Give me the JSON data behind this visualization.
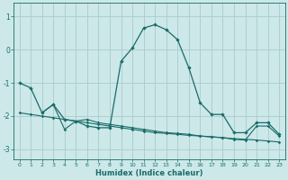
{
  "xlabel": "Humidex (Indice chaleur)",
  "bg_color": "#cce8e8",
  "grid_color": "#aacccc",
  "line_color": "#1a6b6b",
  "xlim": [
    -0.5,
    23.5
  ],
  "ylim": [
    -3.3,
    1.4
  ],
  "yticks": [
    -3,
    -2,
    -1,
    0,
    1
  ],
  "xticks": [
    0,
    1,
    2,
    3,
    4,
    5,
    6,
    7,
    8,
    9,
    10,
    11,
    12,
    13,
    14,
    15,
    16,
    17,
    18,
    19,
    20,
    21,
    22,
    23
  ],
  "series_main": {
    "x": [
      0,
      1,
      2,
      3,
      4,
      5,
      6,
      7,
      8,
      9,
      10,
      11,
      12,
      13,
      14,
      15,
      16,
      17,
      18,
      19,
      20,
      21,
      22,
      23
    ],
    "y": [
      -1.0,
      -1.15,
      -1.9,
      -1.65,
      -2.1,
      -2.15,
      -2.3,
      -2.35,
      -2.35,
      -0.35,
      0.05,
      0.65,
      0.75,
      0.6,
      0.3,
      -0.55,
      -1.6,
      -1.95,
      -1.95,
      -2.5,
      -2.5,
      -2.2,
      -2.2,
      -2.55
    ]
  },
  "series_lower1": {
    "x": [
      2,
      3,
      4,
      5,
      6,
      7,
      8,
      9,
      10,
      11,
      12,
      13,
      14,
      15,
      16,
      17,
      18,
      19,
      20,
      21,
      22,
      23
    ],
    "y": [
      -1.9,
      -1.65,
      -2.4,
      -2.15,
      -2.1,
      -2.2,
      -2.25,
      -2.3,
      -2.35,
      -2.4,
      -2.45,
      -2.5,
      -2.52,
      -2.55,
      -2.6,
      -2.62,
      -2.65,
      -2.7,
      -2.72,
      -2.3,
      -2.3,
      -2.6
    ]
  },
  "series_lower2": {
    "x": [
      0,
      1,
      2,
      3,
      4,
      5,
      6,
      7,
      8,
      9,
      10,
      11,
      12,
      13,
      14,
      15,
      16,
      17,
      18,
      19,
      20,
      21,
      22,
      23
    ],
    "y": [
      -1.9,
      -1.95,
      -2.0,
      -2.05,
      -2.1,
      -2.15,
      -2.2,
      -2.25,
      -2.3,
      -2.35,
      -2.4,
      -2.45,
      -2.5,
      -2.52,
      -2.55,
      -2.58,
      -2.6,
      -2.63,
      -2.65,
      -2.68,
      -2.7,
      -2.72,
      -2.75,
      -2.78
    ]
  }
}
